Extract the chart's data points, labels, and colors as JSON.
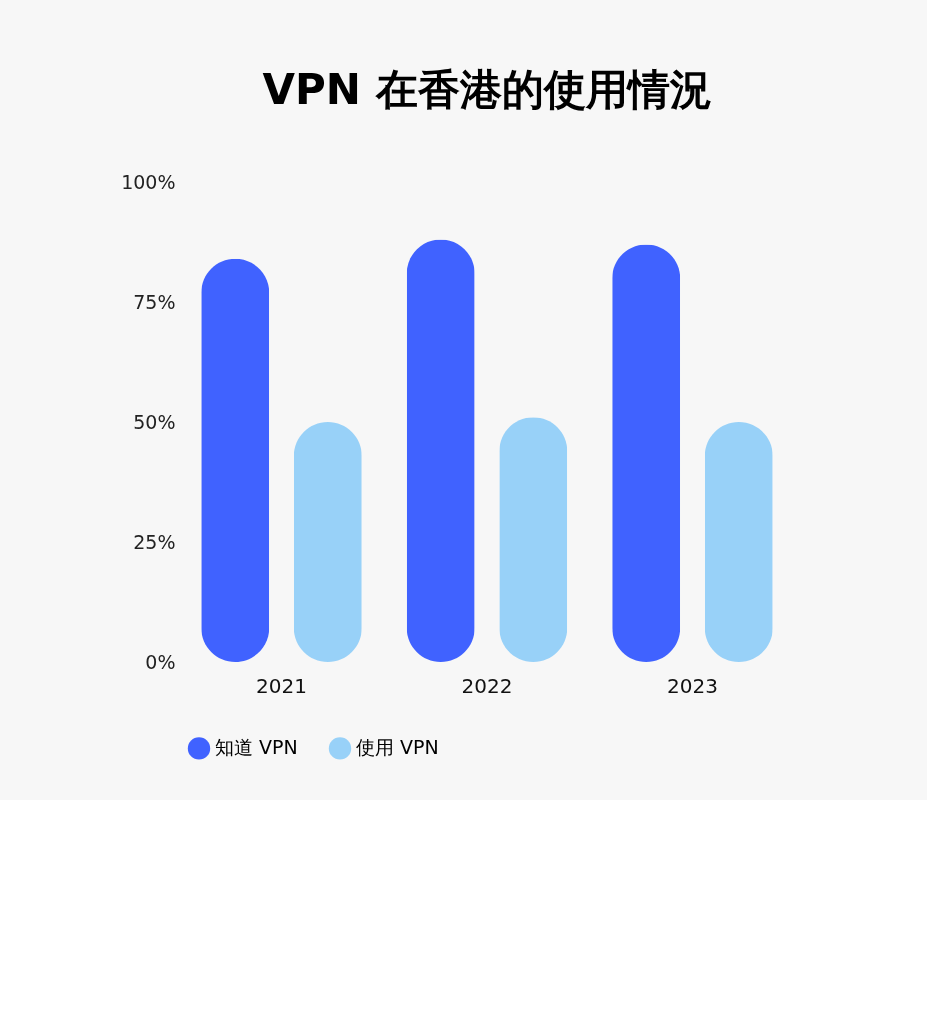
{
  "chart_data": {
    "type": "bar",
    "title": "VPN 在香港的使用情況",
    "categories": [
      "2021",
      "2022",
      "2023"
    ],
    "series": [
      {
        "name": "知道 VPN",
        "color": "#4062ff",
        "values": [
          84,
          88,
          87
        ]
      },
      {
        "name": "使用 VPN",
        "color": "#98d1f8",
        "values": [
          50,
          51,
          50
        ]
      }
    ],
    "ylim": [
      0,
      100
    ],
    "yticks": [
      {
        "value": 0,
        "label": "0%"
      },
      {
        "value": 25,
        "label": "25%"
      },
      {
        "value": 50,
        "label": "50%"
      },
      {
        "value": 75,
        "label": "75%"
      },
      {
        "value": 100,
        "label": "100%"
      }
    ],
    "grid": false,
    "legend": "bottom"
  }
}
